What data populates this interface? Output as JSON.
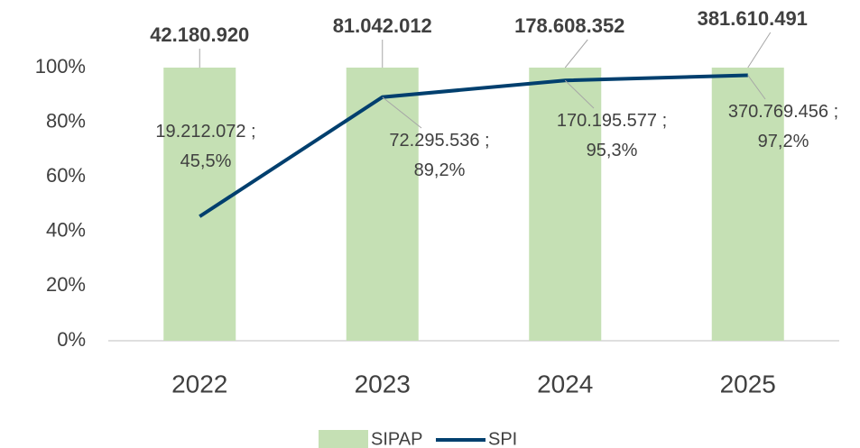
{
  "chart_data": {
    "type": "bar_line",
    "categories": [
      "2022",
      "2023",
      "2024",
      "2025"
    ],
    "annotations": [
      "42.180.920",
      "81.042.012",
      "178.608.352",
      "381.610.491"
    ],
    "series": [
      {
        "name": "SIPAP",
        "type": "bar",
        "color": "#c5e0b4",
        "values": [
          100,
          100,
          100,
          100
        ]
      },
      {
        "name": "SPI",
        "type": "line",
        "color": "#003f6e",
        "values": [
          45.5,
          89.2,
          95.3,
          97.2
        ],
        "value_labels": [
          "19.212.072 ; 45,5%",
          "72.295.536 ; 89,2%",
          "170.195.577 ; 95,3%",
          "370.769.456 ; 97,2%"
        ]
      }
    ],
    "ylim": [
      0,
      100
    ],
    "yticks": [
      {
        "value": 0,
        "label": "0%"
      },
      {
        "value": 20,
        "label": "20%"
      },
      {
        "value": 40,
        "label": "40%"
      },
      {
        "value": 60,
        "label": "60%"
      },
      {
        "value": 80,
        "label": "80%"
      },
      {
        "value": 100,
        "label": "100%"
      }
    ],
    "legend": "bottom"
  }
}
